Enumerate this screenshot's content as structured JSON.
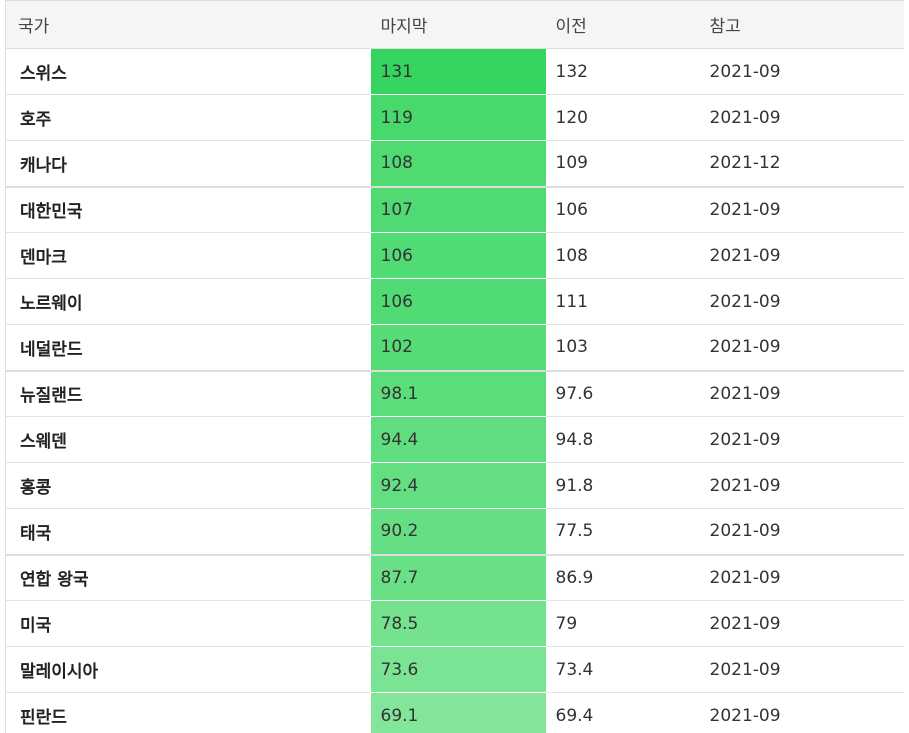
{
  "table": {
    "headers": [
      "국가",
      "마지막",
      "이전",
      "참고"
    ],
    "rows": [
      {
        "country": "스위스",
        "last": "131",
        "previous": "132",
        "reference": "2021-09",
        "color": "#35d45f"
      },
      {
        "country": "호주",
        "last": "119",
        "previous": "120",
        "reference": "2021-09",
        "color": "#47d96c"
      },
      {
        "country": "캐나다",
        "last": "108",
        "previous": "109",
        "reference": "2021-12",
        "color": "#4fda72"
      },
      {
        "country": "대한민국",
        "last": "107",
        "previous": "106",
        "reference": "2021-09",
        "color": "#50da73"
      },
      {
        "country": "덴마크",
        "last": "106",
        "previous": "108",
        "reference": "2021-09",
        "color": "#51db74"
      },
      {
        "country": "노르웨이",
        "last": "106",
        "previous": "111",
        "reference": "2021-09",
        "color": "#51db74"
      },
      {
        "country": "네덜란드",
        "last": "102",
        "previous": "103",
        "reference": "2021-09",
        "color": "#56dc77"
      },
      {
        "country": "뉴질랜드",
        "last": "98.1",
        "previous": "97.6",
        "reference": "2021-09",
        "color": "#5bdd7b"
      },
      {
        "country": "스웨덴",
        "last": "94.4",
        "previous": "94.8",
        "reference": "2021-09",
        "color": "#60de7f"
      },
      {
        "country": "홍콩",
        "last": "92.4",
        "previous": "91.8",
        "reference": "2021-09",
        "color": "#63de81"
      },
      {
        "country": "태국",
        "last": "90.2",
        "previous": "77.5",
        "reference": "2021-09",
        "color": "#66df84"
      },
      {
        "country": "연합 왕국",
        "last": "87.7",
        "previous": "86.9",
        "reference": "2021-09",
        "color": "#69e086"
      },
      {
        "country": "미국",
        "last": "78.5",
        "previous": "79",
        "reference": "2021-09",
        "color": "#75e28f"
      },
      {
        "country": "말레이시아",
        "last": "73.6",
        "previous": "73.4",
        "reference": "2021-09",
        "color": "#7be494"
      },
      {
        "country": "핀란드",
        "last": "69.1",
        "previous": "69.4",
        "reference": "2021-09",
        "color": "#82e599"
      }
    ]
  }
}
